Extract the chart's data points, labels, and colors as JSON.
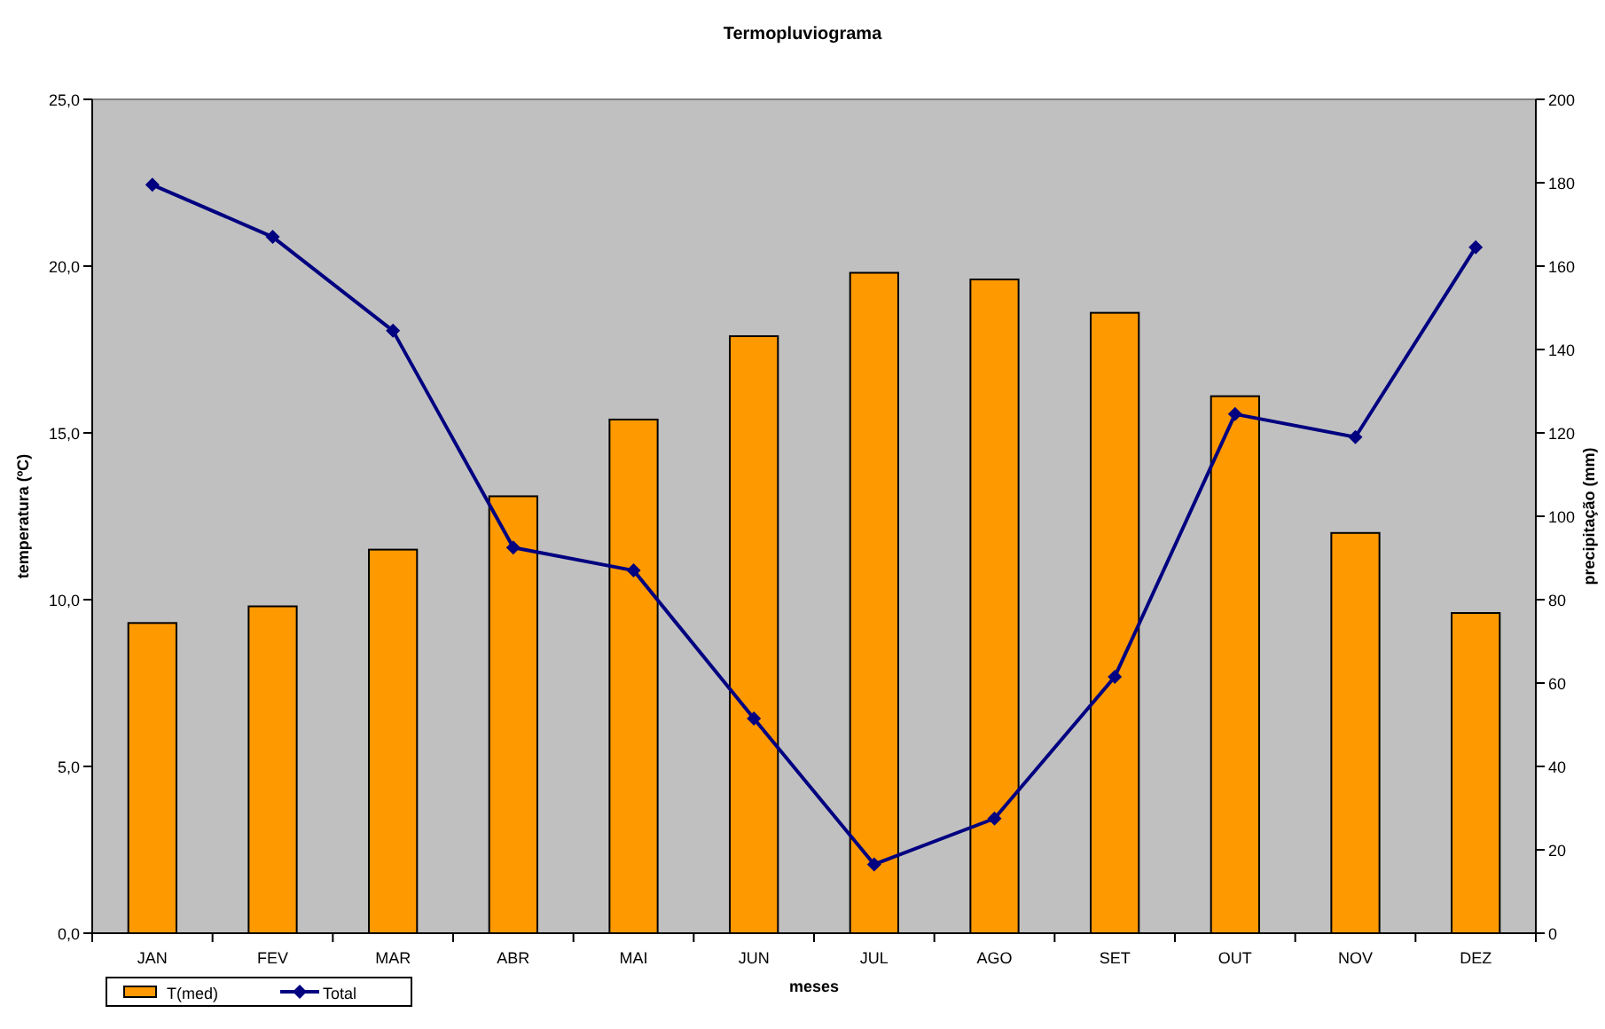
{
  "chart_data": {
    "type": "bar",
    "title": "Termopluviograma",
    "xlabel": "meses",
    "ylabel": "temperatura (ºC)",
    "y2label": "precipitação (mm)",
    "categories": [
      "JAN",
      "FEV",
      "MAR",
      "ABR",
      "MAI",
      "JUN",
      "JUL",
      "AGO",
      "SET",
      "OUT",
      "NOV",
      "DEZ"
    ],
    "series": [
      {
        "name": "T(med)",
        "color": "#ff9900",
        "values": [
          9.3,
          9.8,
          11.5,
          13.1,
          15.4,
          17.9,
          19.8,
          19.6,
          18.6,
          16.1,
          12.0,
          9.6
        ]
      },
      {
        "name": "Total",
        "type": "line",
        "axis": "y2",
        "color": "#000080",
        "marker": "diamond",
        "values": [
          179.5,
          167,
          144.5,
          92.5,
          87,
          51.5,
          16.5,
          27.5,
          61.5,
          124.5,
          119,
          164.5
        ]
      }
    ],
    "ylim": [
      0,
      25
    ],
    "yticks": [
      {
        "value": 0,
        "label": "0,0"
      },
      {
        "value": 5,
        "label": "5,0"
      },
      {
        "value": 10,
        "label": "10,0"
      },
      {
        "value": 15,
        "label": "15,0"
      },
      {
        "value": 20,
        "label": "20,0"
      },
      {
        "value": 25,
        "label": "25,0"
      }
    ],
    "y2lim": [
      0,
      200
    ],
    "y2ticks": [
      0,
      20,
      40,
      60,
      80,
      100,
      120,
      140,
      160,
      180,
      200
    ],
    "grid": false,
    "legend": "bottom left"
  }
}
